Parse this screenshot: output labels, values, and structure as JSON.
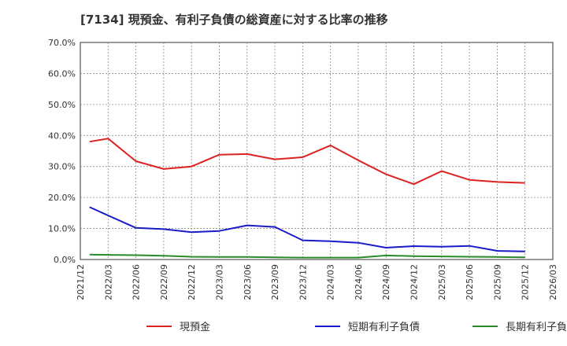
{
  "chart_data": {
    "type": "line",
    "title": "[7134]  現預金、有利子負債の総資産に対する比率の推移",
    "xlabel": "",
    "ylabel": "",
    "ylim": [
      0,
      70
    ],
    "yticks": [
      0,
      10,
      20,
      30,
      40,
      50,
      60,
      70
    ],
    "ytick_labels": [
      "0.0%",
      "10.0%",
      "20.0%",
      "30.0%",
      "40.0%",
      "50.0%",
      "60.0%",
      "70.0%"
    ],
    "xrange": [
      "2021/12",
      "2026/03"
    ],
    "xtick_labels": [
      "2021/12",
      "2022/03",
      "2022/06",
      "2022/09",
      "2022/12",
      "2023/03",
      "2023/06",
      "2023/09",
      "2023/12",
      "2024/03",
      "2024/06",
      "2024/09",
      "2024/12",
      "2025/03",
      "2025/06",
      "2025/09",
      "2025/12",
      "2026/03"
    ],
    "x": [
      "2022/01",
      "2022/03",
      "2022/06",
      "2022/09",
      "2022/12",
      "2023/03",
      "2023/06",
      "2023/09",
      "2023/12",
      "2024/03",
      "2024/06",
      "2024/09",
      "2024/12",
      "2025/03",
      "2025/06",
      "2025/09",
      "2025/12"
    ],
    "series": [
      {
        "name": "現預金",
        "color": "#dd2222",
        "values": [
          38.0,
          39.0,
          31.7,
          29.2,
          30.0,
          33.8,
          34.0,
          32.3,
          33.0,
          36.8,
          32.0,
          27.5,
          24.3,
          28.5,
          25.7,
          25.0,
          24.7
        ]
      },
      {
        "name": "短期有利子負債",
        "color": "#1a1acc",
        "values": [
          16.9,
          14.2,
          10.2,
          9.8,
          8.8,
          9.2,
          11.0,
          10.5,
          6.2,
          5.9,
          5.4,
          3.8,
          4.3,
          4.1,
          4.4,
          2.8,
          2.6
        ]
      },
      {
        "name": "長期有利子負債",
        "color": "#2a8a2a",
        "values": [
          1.6,
          1.5,
          1.4,
          1.2,
          0.9,
          0.8,
          0.8,
          0.7,
          0.6,
          0.6,
          0.6,
          1.3,
          1.1,
          1.0,
          0.9,
          0.8,
          0.7
        ]
      }
    ],
    "grid": true,
    "legend_position": "bottom"
  }
}
